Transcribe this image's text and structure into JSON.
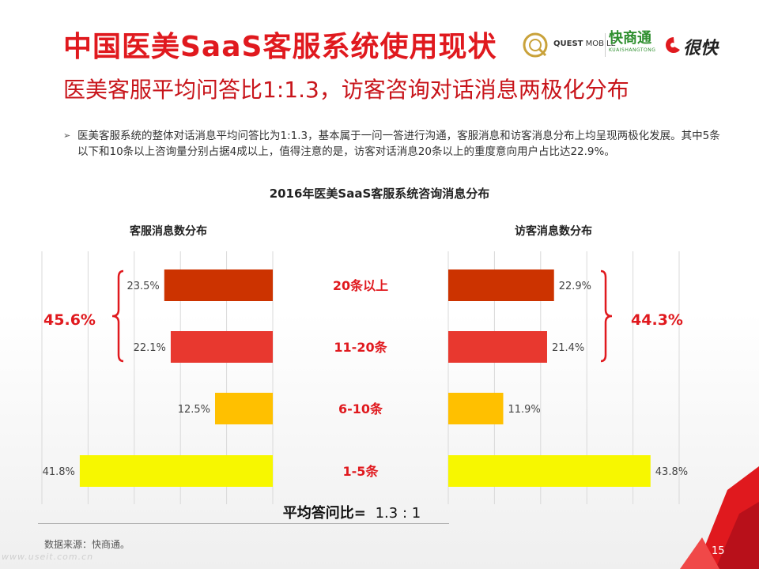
{
  "title": "中国医美SaaS客服系统使用现状",
  "subtitle": "医美客服平均问答比1:1.3，访客咨询对话消息两极化分布",
  "logos": {
    "quest_main": "QUEST",
    "quest_sub": "MOBILE",
    "kuaishangtong_cn": "快商通",
    "kuaishangtong_en": "KUAISHANGTONG",
    "henkuai": "很快"
  },
  "bullet": "医美客服系统的整体对话消息平均问答比为1:1.3，基本属于一问一答进行沟通，客服消息和访客消息分布上均呈现两极化发展。其中5条以下和10条以上咨询量分别占据4成以上，值得注意的是，访客对话消息20条以上的重度意向用户占比达22.9%。",
  "bullet_marker": "➢",
  "chart_data": {
    "type": "bar",
    "orientation": "horizontal-mirrored",
    "title": "2016年医美SaaS客服系统咨询消息分布",
    "categories": [
      "20条以上",
      "11-20条",
      "6-10条",
      "1-5条"
    ],
    "series": [
      {
        "name": "客服消息数分布",
        "side": "left",
        "values": [
          23.5,
          22.1,
          12.5,
          41.8
        ],
        "labels": [
          "23.5%",
          "22.1%",
          "12.5%",
          "41.8%"
        ]
      },
      {
        "name": "访客消息数分布",
        "side": "right",
        "values": [
          22.9,
          21.4,
          11.9,
          43.8
        ],
        "labels": [
          "22.9%",
          "21.4%",
          "11.9%",
          "43.8%"
        ]
      }
    ],
    "bar_colors": [
      "#cc3300",
      "#e8382f",
      "#ffc000",
      "#f7f700"
    ],
    "category_label_color": "#e0191e",
    "group_labels": {
      "left": "45.6%",
      "right": "44.3%"
    },
    "group_label_color": "#e0191e",
    "xlim": [
      0,
      50
    ],
    "grid": true,
    "ratio_label": "平均答问比=",
    "ratio_value": "1.3 : 1"
  },
  "source": "数据来源：快商通。",
  "watermark": "www.useit.com.cn",
  "page_number": "15",
  "colors": {
    "brand_red": "#e0191e",
    "dark_red": "#c8151b"
  }
}
